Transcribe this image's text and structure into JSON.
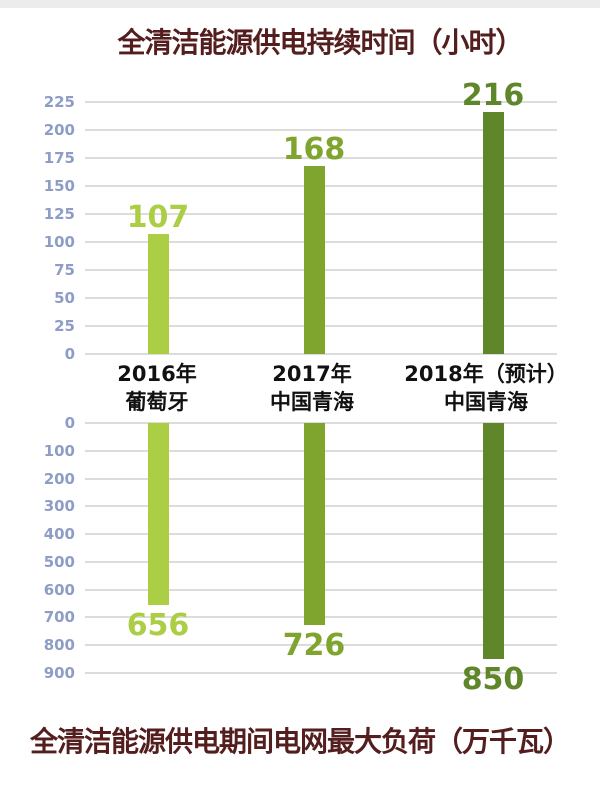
{
  "titles": {
    "top": "全清洁能源供电持续时间（小时）",
    "bottom": "全清洁能源供电期间电网最大负荷（万千瓦）"
  },
  "categories": [
    {
      "line1": "2016年",
      "line2": "葡萄牙"
    },
    {
      "line1": "2017年",
      "line2": "中国青海"
    },
    {
      "line1": "2018年（预计）",
      "line2": "中国青海"
    }
  ],
  "colors": {
    "bars": [
      "#acce44",
      "#80a52e",
      "#60862b"
    ],
    "title": "#541e1e",
    "axis_label": "#8e9dc6",
    "gridline": "#dcdcdc",
    "category_text": "#111111"
  },
  "chart_data": [
    {
      "type": "bar",
      "title": "全清洁能源供电持续时间（小时）",
      "categories": [
        "2016年 葡萄牙",
        "2017年 中国青海",
        "2018年（预计） 中国青海"
      ],
      "values": [
        107,
        168,
        216
      ],
      "value_labels": [
        "107",
        "168",
        "216"
      ],
      "ylabel": "小时",
      "ylim": [
        0,
        225
      ],
      "yticks": [
        225,
        200,
        175,
        150,
        125,
        100,
        75,
        50,
        25,
        0
      ],
      "orientation": "vertical-up",
      "grid": true,
      "legend": false
    },
    {
      "type": "bar",
      "title": "全清洁能源供电期间电网最大负荷（万千瓦）",
      "categories": [
        "2016年 葡萄牙",
        "2017年 中国青海",
        "2018年（预计） 中国青海"
      ],
      "values": [
        656,
        726,
        850
      ],
      "value_labels": [
        "656",
        "726",
        "850"
      ],
      "ylabel": "万千瓦",
      "ylim": [
        0,
        900
      ],
      "yticks": [
        0,
        100,
        200,
        300,
        400,
        500,
        600,
        700,
        800,
        900
      ],
      "orientation": "vertical-down",
      "grid": true,
      "legend": false
    }
  ]
}
